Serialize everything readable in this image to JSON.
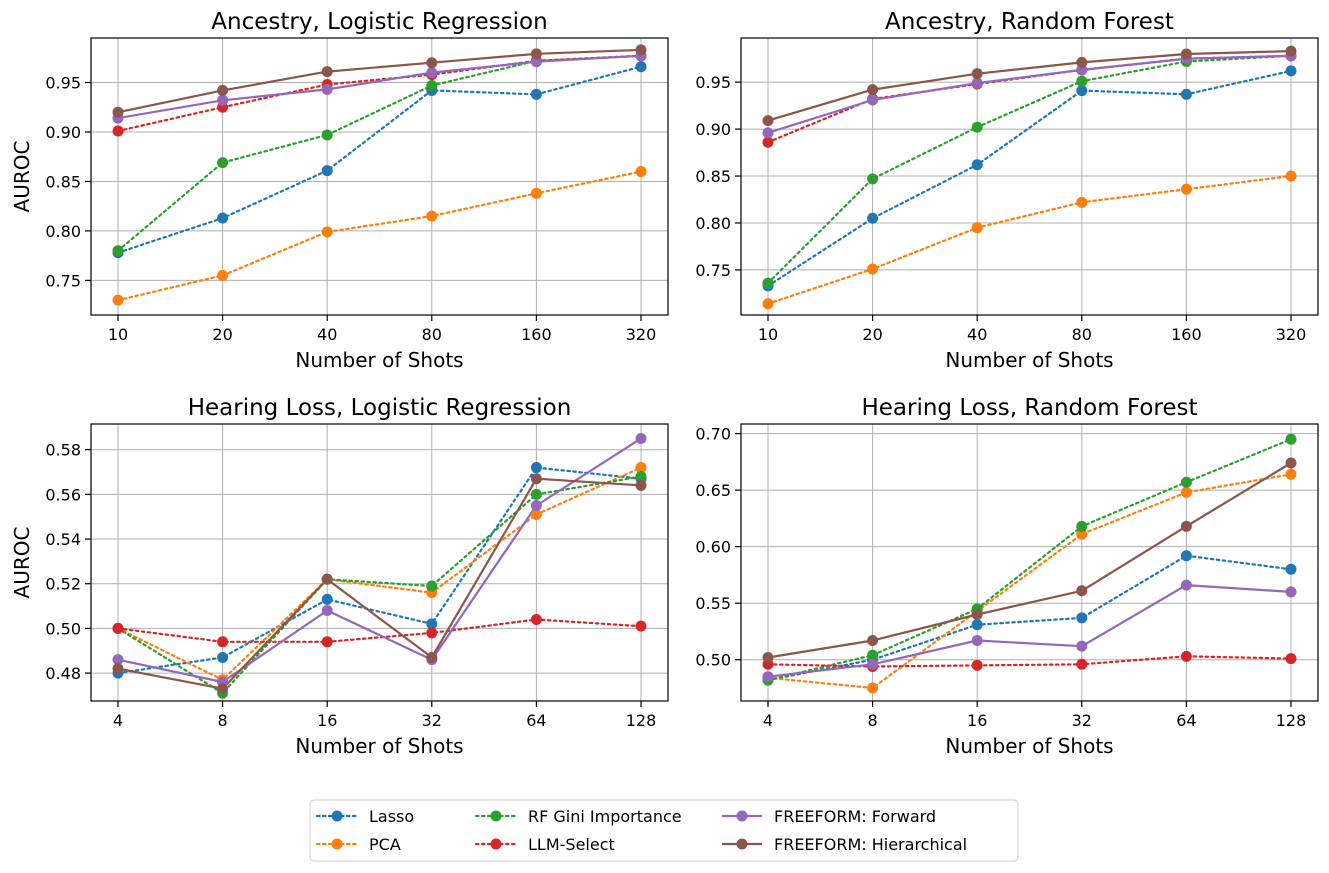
{
  "legend": {
    "location": "bottom-center",
    "entries": [
      {
        "label": "Lasso",
        "color": "#1f77b4",
        "style": "dotted"
      },
      {
        "label": "PCA",
        "color": "#ff7f0e",
        "style": "dotted"
      },
      {
        "label": "RF Gini Importance",
        "color": "#2ca02c",
        "style": "dotted"
      },
      {
        "label": "LLM-Select",
        "color": "#d62728",
        "style": "dotted"
      },
      {
        "label": "FREEFORM: Forward",
        "color": "#9467bd",
        "style": "solid"
      },
      {
        "label": "FREEFORM: Hierarchical",
        "color": "#8c564b",
        "style": "solid"
      }
    ]
  },
  "chart_data": [
    {
      "type": "line",
      "title": "Ancestry, Logistic Regression",
      "xlabel": "Number of Shots",
      "ylabel": "AUROC",
      "categories": [
        "10",
        "20",
        "40",
        "80",
        "160",
        "320"
      ],
      "ylim": [
        0.715,
        0.995
      ],
      "yticks": [
        "0.75",
        "0.80",
        "0.85",
        "0.90",
        "0.95"
      ],
      "grid": true,
      "series": [
        {
          "name": "Lasso",
          "values": [
            0.778,
            0.813,
            0.861,
            0.942,
            0.938,
            0.966
          ]
        },
        {
          "name": "PCA",
          "values": [
            0.73,
            0.755,
            0.799,
            0.815,
            0.838,
            0.86
          ]
        },
        {
          "name": "RF Gini Importance",
          "values": [
            0.78,
            0.869,
            0.897,
            0.947,
            0.972,
            0.977
          ]
        },
        {
          "name": "LLM-Select",
          "values": [
            0.901,
            0.925,
            0.948,
            0.958,
            0.972,
            0.977
          ]
        },
        {
          "name": "FREEFORM: Forward",
          "values": [
            0.914,
            0.932,
            0.943,
            0.96,
            0.971,
            0.977
          ]
        },
        {
          "name": "FREEFORM: Hierarchical",
          "values": [
            0.92,
            0.942,
            0.961,
            0.97,
            0.979,
            0.983
          ]
        }
      ]
    },
    {
      "type": "line",
      "title": "Ancestry, Random Forest",
      "xlabel": "Number of Shots",
      "ylabel": "",
      "categories": [
        "10",
        "20",
        "40",
        "80",
        "160",
        "320"
      ],
      "ylim": [
        0.702,
        0.997
      ],
      "yticks": [
        "0.75",
        "0.80",
        "0.85",
        "0.90",
        "0.95"
      ],
      "grid": true,
      "series": [
        {
          "name": "Lasso",
          "values": [
            0.733,
            0.805,
            0.862,
            0.941,
            0.937,
            0.962
          ]
        },
        {
          "name": "PCA",
          "values": [
            0.714,
            0.751,
            0.795,
            0.822,
            0.836,
            0.85
          ]
        },
        {
          "name": "RF Gini Importance",
          "values": [
            0.736,
            0.847,
            0.902,
            0.951,
            0.972,
            0.978
          ]
        },
        {
          "name": "LLM-Select",
          "values": [
            0.886,
            0.932,
            0.948,
            0.963,
            0.975,
            0.978
          ]
        },
        {
          "name": "FREEFORM: Forward",
          "values": [
            0.896,
            0.931,
            0.949,
            0.963,
            0.975,
            0.978
          ]
        },
        {
          "name": "FREEFORM: Hierarchical",
          "values": [
            0.909,
            0.942,
            0.959,
            0.971,
            0.98,
            0.983
          ]
        }
      ]
    },
    {
      "type": "line",
      "title": "Hearing Loss, Logistic Regression",
      "xlabel": "Number of Shots",
      "ylabel": "AUROC",
      "categories": [
        "4",
        "8",
        "16",
        "32",
        "64",
        "128"
      ],
      "ylim": [
        0.4675,
        0.5915
      ],
      "yticks": [
        "0.48",
        "0.50",
        "0.52",
        "0.54",
        "0.56",
        "0.58"
      ],
      "grid": true,
      "series": [
        {
          "name": "Lasso",
          "values": [
            0.48,
            0.487,
            0.513,
            0.502,
            0.572,
            0.567
          ]
        },
        {
          "name": "PCA",
          "values": [
            0.5,
            0.477,
            0.522,
            0.516,
            0.551,
            0.572
          ]
        },
        {
          "name": "RF Gini Importance",
          "values": [
            0.5,
            0.471,
            0.522,
            0.519,
            0.56,
            0.568
          ]
        },
        {
          "name": "LLM-Select",
          "values": [
            0.5,
            0.494,
            0.494,
            0.498,
            0.504,
            0.501
          ]
        },
        {
          "name": "FREEFORM: Forward",
          "values": [
            0.486,
            0.476,
            0.508,
            0.486,
            0.555,
            0.585
          ]
        },
        {
          "name": "FREEFORM: Hierarchical",
          "values": [
            0.482,
            0.473,
            0.522,
            0.487,
            0.567,
            0.564
          ]
        }
      ]
    },
    {
      "type": "line",
      "title": "Hearing Loss, Random Forest",
      "xlabel": "Number of Shots",
      "ylabel": "",
      "categories": [
        "4",
        "8",
        "16",
        "32",
        "64",
        "128"
      ],
      "ylim": [
        0.4635,
        0.7085
      ],
      "yticks": [
        "0.50",
        "0.55",
        "0.60",
        "0.65",
        "0.70"
      ],
      "grid": true,
      "series": [
        {
          "name": "Lasso",
          "values": [
            0.482,
            0.5,
            0.531,
            0.537,
            0.592,
            0.58
          ]
        },
        {
          "name": "PCA",
          "values": [
            0.484,
            0.475,
            0.543,
            0.611,
            0.648,
            0.664
          ]
        },
        {
          "name": "RF Gini Importance",
          "values": [
            0.482,
            0.504,
            0.545,
            0.618,
            0.657,
            0.695
          ]
        },
        {
          "name": "LLM-Select",
          "values": [
            0.496,
            0.494,
            0.495,
            0.496,
            0.503,
            0.501
          ]
        },
        {
          "name": "FREEFORM: Forward",
          "values": [
            0.485,
            0.496,
            0.517,
            0.512,
            0.566,
            0.56
          ]
        },
        {
          "name": "FREEFORM: Hierarchical",
          "values": [
            0.502,
            0.517,
            0.54,
            0.561,
            0.618,
            0.674
          ]
        }
      ]
    }
  ]
}
